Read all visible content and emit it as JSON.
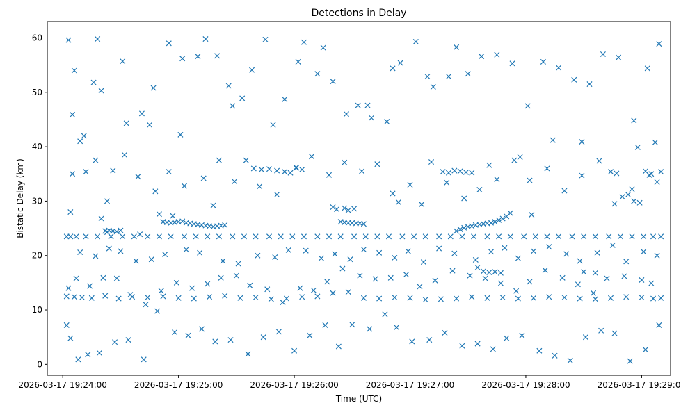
{
  "chart_data": {
    "type": "scatter",
    "title": "Detections in Delay",
    "xlabel": "Time (UTC)",
    "ylabel": "Bistatic Delay (km)",
    "x_ticks": [
      "2026-03-17 19:24:00",
      "2026-03-17 19:25:00",
      "2026-03-17 19:26:00",
      "2026-03-17 19:27:00",
      "2026-03-17 19:28:00",
      "2026-03-17 19:29:00"
    ],
    "y_ticks": [
      "0",
      "10",
      "20",
      "30",
      "40",
      "50",
      "60"
    ],
    "xlim": [
      "2026-03-17 19:23:52",
      "2026-03-17 19:29:15"
    ],
    "ylim": [
      -2,
      63
    ],
    "marker": "x",
    "color": "#1f77b4",
    "grid": false,
    "series": [
      {
        "x": [
          "19:24:02",
          "19:24:04",
          "19:24:07",
          "19:24:12",
          "19:24:18",
          "19:24:25",
          "19:24:31",
          "19:24:37",
          "19:24:44",
          "19:24:50",
          "19:24:56",
          "19:25:03",
          "19:25:09",
          "19:25:15",
          "19:25:21",
          "19:25:28",
          "19:25:34",
          "19:25:40",
          "19:25:47",
          "19:25:53",
          "19:25:59",
          "19:26:05",
          "19:26:12",
          "19:26:18",
          "19:26:24",
          "19:26:31",
          "19:26:37",
          "19:26:43",
          "19:26:49",
          "19:26:56",
          "19:27:02",
          "19:27:08",
          "19:27:15",
          "19:27:21",
          "19:27:27",
          "19:27:33",
          "19:27:40",
          "19:27:46",
          "19:27:52",
          "19:27:59",
          "19:28:05",
          "19:28:11",
          "19:28:17",
          "19:28:24",
          "19:28:30",
          "19:28:36",
          "19:28:43",
          "19:28:49",
          "19:28:55",
          "19:29:01",
          "19:29:06",
          "19:29:10",
          "19:24:02",
          "19:24:06",
          "19:24:10",
          "19:24:15",
          "19:24:22",
          "19:24:29",
          "19:24:36",
          "19:24:44",
          "19:24:52",
          "19:25:00",
          "19:25:08",
          "19:25:16",
          "19:25:24",
          "19:25:32",
          "19:25:40",
          "19:25:48",
          "19:25:56",
          "19:26:04",
          "19:26:12",
          "19:26:20",
          "19:26:28",
          "19:26:36",
          "19:26:44",
          "19:26:52",
          "19:27:00",
          "19:27:08",
          "19:27:16",
          "19:27:24",
          "19:27:32",
          "19:27:40",
          "19:27:48",
          "19:27:56",
          "19:28:04",
          "19:28:12",
          "19:28:20",
          "19:28:28",
          "19:28:36",
          "19:28:44",
          "19:28:52",
          "19:29:00",
          "19:29:06",
          "19:29:10",
          "19:24:22",
          "19:24:24",
          "19:24:26",
          "19:24:28",
          "19:24:30",
          "19:24:52",
          "19:24:54",
          "19:24:56",
          "19:24:58",
          "19:25:00",
          "19:25:02",
          "19:25:04",
          "19:25:06",
          "19:25:08",
          "19:25:10",
          "19:25:12",
          "19:25:14",
          "19:25:16",
          "19:25:18",
          "19:25:20",
          "19:25:22",
          "19:25:24",
          "19:26:24",
          "19:26:26",
          "19:26:28",
          "19:26:30",
          "19:26:32",
          "19:26:34",
          "19:26:36",
          "19:27:24",
          "19:27:26",
          "19:27:28",
          "19:27:30",
          "19:27:32",
          "19:27:34",
          "19:27:36",
          "19:27:38",
          "19:27:40",
          "19:27:42",
          "19:27:44",
          "19:27:46",
          "19:27:48",
          "19:27:50",
          "19:27:52",
          "19:24:04",
          "19:24:20",
          "19:24:23",
          "19:24:40",
          "19:24:50",
          "19:24:57",
          "19:25:18",
          "19:25:39",
          "19:25:43",
          "19:25:47",
          "19:25:51",
          "19:25:55",
          "19:25:58",
          "19:26:01",
          "19:26:04",
          "19:26:20",
          "19:26:22",
          "19:26:26",
          "19:26:28",
          "19:26:31",
          "19:26:54",
          "19:27:06",
          "19:27:17",
          "19:27:20",
          "19:27:23",
          "19:27:26",
          "19:27:29",
          "19:27:32",
          "19:27:35",
          "19:27:38",
          "19:27:41",
          "19:27:44",
          "19:27:47",
          "19:28:03",
          "19:28:30",
          "19:28:36",
          "19:28:46",
          "19:28:50",
          "19:28:53",
          "19:28:56",
          "19:28:59",
          "19:29:02",
          "19:29:05",
          "19:29:08",
          "19:29:10",
          "19:24:03",
          "19:24:06",
          "19:24:09",
          "19:24:12",
          "19:24:16",
          "19:24:20",
          "19:24:26",
          "19:24:33",
          "19:24:41",
          "19:24:47",
          "19:24:55",
          "19:25:01",
          "19:25:10",
          "19:25:20",
          "19:25:28",
          "19:25:38",
          "19:25:45",
          "19:25:55",
          "19:26:05",
          "19:26:12",
          "19:26:20",
          "19:26:27",
          "19:26:33",
          "19:26:40",
          "19:26:48",
          "19:26:55",
          "19:27:03",
          "19:27:12",
          "19:27:20",
          "19:27:30",
          "19:27:37",
          "19:27:45",
          "19:27:53",
          "19:28:01",
          "19:28:09",
          "19:28:17",
          "19:28:25",
          "19:28:33",
          "19:28:40",
          "19:28:48",
          "19:28:56",
          "19:29:03",
          "19:29:09",
          "19:24:05",
          "19:24:18",
          "19:24:31",
          "19:24:45",
          "19:25:02",
          "19:25:14",
          "19:25:26",
          "19:25:33",
          "19:25:49",
          "19:26:02",
          "19:26:15",
          "19:26:38",
          "19:26:51",
          "19:27:09",
          "19:27:24",
          "19:27:41",
          "19:27:57",
          "19:28:14",
          "19:28:29",
          "19:28:44",
          "19:28:58",
          "19:29:07",
          "19:24:02",
          "19:24:04",
          "19:24:08",
          "19:24:13",
          "19:24:19",
          "19:24:27",
          "19:24:34",
          "19:24:42",
          "19:24:49",
          "19:24:58",
          "19:25:05",
          "19:25:12",
          "19:25:19",
          "19:25:27",
          "19:25:36",
          "19:25:44",
          "19:25:52",
          "19:26:00",
          "19:26:08",
          "19:26:16",
          "19:26:23",
          "19:26:30",
          "19:26:39",
          "19:26:47",
          "19:26:53",
          "19:27:01",
          "19:27:10",
          "19:27:18",
          "19:27:27",
          "19:27:35",
          "19:27:43",
          "19:27:50",
          "19:27:58",
          "19:28:07",
          "19:28:15",
          "19:28:23",
          "19:28:31",
          "19:28:39",
          "19:28:46",
          "19:28:54",
          "19:29:02",
          "19:29:09",
          "19:24:03",
          "19:24:07",
          "19:24:14",
          "19:24:21",
          "19:24:28",
          "19:24:35",
          "19:24:43",
          "19:24:51",
          "19:24:59",
          "19:25:07",
          "19:25:15",
          "19:25:22",
          "19:25:30",
          "19:25:37",
          "19:25:46",
          "19:25:54",
          "19:26:03",
          "19:26:10",
          "19:26:17",
          "19:26:25",
          "19:26:34",
          "19:26:42",
          "19:26:50",
          "19:26:58",
          "19:27:05",
          "19:27:13",
          "19:27:22",
          "19:27:31",
          "19:27:39",
          "19:27:47",
          "19:27:55",
          "19:28:02",
          "19:28:10",
          "19:28:19",
          "19:28:27",
          "19:28:35",
          "19:28:42",
          "19:28:51",
          "19:29:00",
          "19:29:05",
          "19:24:09",
          "19:24:17",
          "19:24:24",
          "19:24:30",
          "19:24:38",
          "19:24:46",
          "19:24:53",
          "19:25:04",
          "19:25:11",
          "19:25:23",
          "19:25:31",
          "19:25:41",
          "19:25:50",
          "19:25:57",
          "19:26:06",
          "19:26:14",
          "19:26:21",
          "19:26:29",
          "19:26:36",
          "19:26:44",
          "19:26:52",
          "19:26:59",
          "19:27:07",
          "19:27:15",
          "19:27:23",
          "19:27:34",
          "19:27:42",
          "19:27:49",
          "19:27:56",
          "19:28:04",
          "19:28:12",
          "19:28:21",
          "19:28:28",
          "19:28:37",
          "19:28:45",
          "19:28:52",
          "19:29:01",
          "19:29:08",
          "19:24:05",
          "19:24:11",
          "19:24:17",
          "19:24:23",
          "19:24:32",
          "19:24:39",
          "19:24:48",
          "19:24:55",
          "19:25:03",
          "19:25:13",
          "19:25:21",
          "19:25:29",
          "19:25:35",
          "19:25:42",
          "19:25:51",
          "19:26:01",
          "19:26:09",
          "19:26:18",
          "19:26:26",
          "19:26:35",
          "19:26:43",
          "19:26:51",
          "19:27:00",
          "19:27:11",
          "19:27:19",
          "19:27:28",
          "19:27:36",
          "19:27:45",
          "19:27:54",
          "19:28:02",
          "19:28:11",
          "19:28:20",
          "19:28:29",
          "19:28:38",
          "19:28:47",
          "19:28:55",
          "19:29:04"
        ],
        "y": [
          23.5,
          23.5,
          23.5,
          23.5,
          23.5,
          23.5,
          23.5,
          23.5,
          23.5,
          23.5,
          23.5,
          23.5,
          23.5,
          23.5,
          23.5,
          23.5,
          23.5,
          23.5,
          23.5,
          23.5,
          23.5,
          23.5,
          23.5,
          23.5,
          23.5,
          23.5,
          23.5,
          23.5,
          23.5,
          23.5,
          23.5,
          23.5,
          23.5,
          23.5,
          23.5,
          23.5,
          23.5,
          23.5,
          23.5,
          23.5,
          23.5,
          23.5,
          23.5,
          23.5,
          23.5,
          23.5,
          23.5,
          23.5,
          23.5,
          23.5,
          23.5,
          23.5,
          12.5,
          12.4,
          12.3,
          12.2,
          12.6,
          12.1,
          12.4,
          12.3,
          12.5,
          12.2,
          12.1,
          12.4,
          12.6,
          12.2,
          12.3,
          12.0,
          12.1,
          12.4,
          12.5,
          13.1,
          13.3,
          12.2,
          12.1,
          12.3,
          12.2,
          11.9,
          12.0,
          12.1,
          12.4,
          12.2,
          12.3,
          12.1,
          12.2,
          12.4,
          12.3,
          12.1,
          12.0,
          12.2,
          12.4,
          12.3,
          12.1,
          12.2,
          24.5,
          24.6,
          24.5,
          24.4,
          24.6,
          26.2,
          26.1,
          26.0,
          26.1,
          26.2,
          26.3,
          26.0,
          25.9,
          25.8,
          25.7,
          25.6,
          25.5,
          25.4,
          25.3,
          25.4,
          25.5,
          25.6,
          26.2,
          26.1,
          26.0,
          26.0,
          25.9,
          25.9,
          25.8,
          24.5,
          24.8,
          25.1,
          25.3,
          25.4,
          25.6,
          25.7,
          25.8,
          25.9,
          26.0,
          26.2,
          26.5,
          26.8,
          27.2,
          27.8,
          28.0,
          26.8,
          24.3,
          23.9,
          27.6,
          27.3,
          29.2,
          36.0,
          35.8,
          35.9,
          35.6,
          35.4,
          35.2,
          36.1,
          35.8,
          28.9,
          28.5,
          28.7,
          28.3,
          28.6,
          29.8,
          29.4,
          35.4,
          35.2,
          35.6,
          35.5,
          35.3,
          35.2,
          17.8,
          17.1,
          16.9,
          17.0,
          16.8,
          27.5,
          17.0,
          16.8,
          29.5,
          30.8,
          31.2,
          30.0,
          29.7,
          35.5,
          35.0,
          33.5,
          35.4,
          59.6,
          54.0,
          41.0,
          35.4,
          51.8,
          50.3,
          35.6,
          44.3,
          46.1,
          50.8,
          59.0,
          42.2,
          56.6,
          56.7,
          47.5,
          54.1,
          59.7,
          48.7,
          59.2,
          53.4,
          52.0,
          46.0,
          47.6,
          45.3,
          44.6,
          55.4,
          59.3,
          51.0,
          52.9,
          53.4,
          56.6,
          56.9,
          55.3,
          47.5,
          55.6,
          54.5,
          52.3,
          51.5,
          57.0,
          56.4,
          44.8,
          54.4,
          58.9,
          45.9,
          59.8,
          55.7,
          44.0,
          56.2,
          59.8,
          51.2,
          48.9,
          44.0,
          55.6,
          58.2,
          47.6,
          54.4,
          52.9,
          58.3,
          36.6,
          38.1,
          41.2,
          40.9,
          35.4,
          39.9,
          40.8,
          7.2,
          4.8,
          0.9,
          1.8,
          2.1,
          4.1,
          4.5,
          0.9,
          9.8,
          5.9,
          5.3,
          6.5,
          4.2,
          4.5,
          1.9,
          5.0,
          6.0,
          2.5,
          5.3,
          7.2,
          3.3,
          7.3,
          6.5,
          9.2,
          6.8,
          4.2,
          4.5,
          5.8,
          3.4,
          3.8,
          2.8,
          4.8,
          5.3,
          2.5,
          1.6,
          0.7,
          5.0,
          6.2,
          5.7,
          0.6,
          2.7,
          7.2,
          14.0,
          15.8,
          14.4,
          15.9,
          15.8,
          12.8,
          11.0,
          13.5,
          15.0,
          14.0,
          14.8,
          15.9,
          16.3,
          14.5,
          13.8,
          11.4,
          14.0,
          13.6,
          15.2,
          17.6,
          16.3,
          15.7,
          15.9,
          16.5,
          14.3,
          15.4,
          17.2,
          16.3,
          15.8,
          14.9,
          13.5,
          15.2,
          17.3,
          15.9,
          14.7,
          13.1,
          15.8,
          16.2,
          15.5,
          14.9,
          20.6,
          19.9,
          21.3,
          20.8,
          19.0,
          19.3,
          20.2,
          21.1,
          20.5,
          19.0,
          18.5,
          20.0,
          19.7,
          21.0,
          20.9,
          19.5,
          20.3,
          19.3,
          21.1,
          20.5,
          19.6,
          20.8,
          18.8,
          21.3,
          20.4,
          19.2,
          20.7,
          21.4,
          19.5,
          20.8,
          21.6,
          20.3,
          19.0,
          20.5,
          21.9,
          18.9,
          20.7,
          20.0,
          35.0,
          42.0,
          37.5,
          30.0,
          38.5,
          34.5,
          31.8,
          35.4,
          32.8,
          34.2,
          37.5,
          33.6,
          37.5,
          32.7,
          31.2,
          36.2,
          38.2,
          34.8,
          37.1,
          35.5,
          36.8,
          31.4,
          33.0,
          37.2,
          33.4,
          30.5,
          32.1,
          34.0,
          37.5,
          33.8,
          36.0,
          31.9,
          34.7,
          37.4,
          35.1,
          32.2,
          34.8
        ]
      }
    ]
  }
}
